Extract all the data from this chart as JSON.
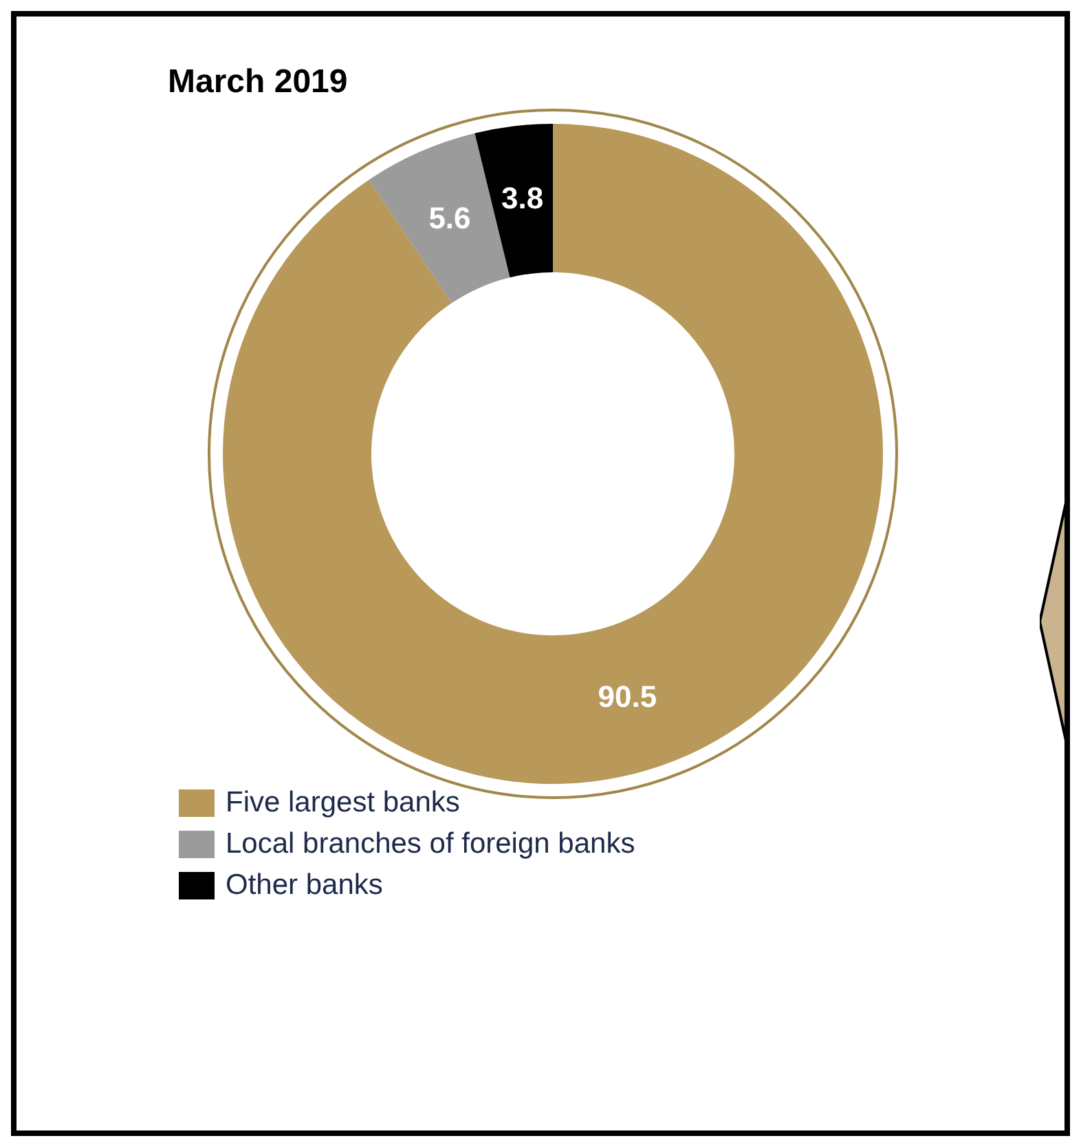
{
  "chart_data": {
    "type": "donut",
    "title": "March 2019",
    "categories": [
      "Five largest banks",
      "Local branches of foreign banks",
      "Other banks"
    ],
    "values": [
      90.5,
      5.6,
      3.8
    ],
    "colors": [
      "#b8995a",
      "#9b9b9b",
      "#000000"
    ],
    "data_labels": true,
    "legend": "bottom left"
  }
}
